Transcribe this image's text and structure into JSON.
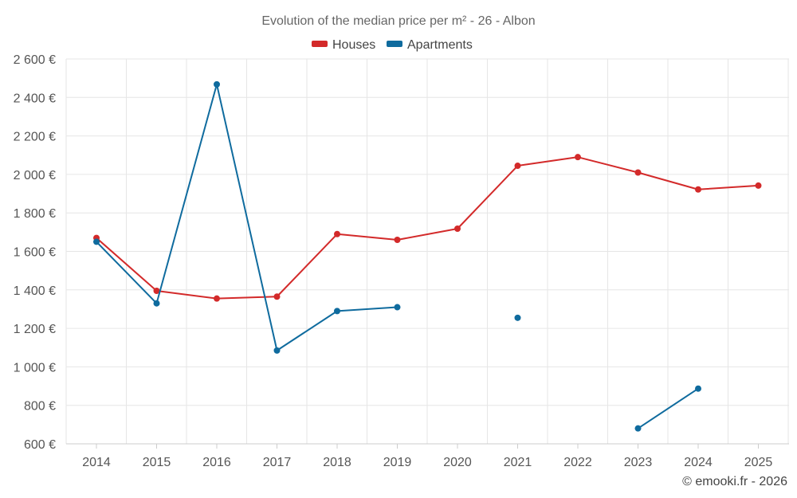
{
  "chart_data": {
    "type": "line",
    "title": "Evolution of the median price per m² - 26 - Albon",
    "categories": [
      "2014",
      "2015",
      "2016",
      "2017",
      "2018",
      "2019",
      "2020",
      "2021",
      "2022",
      "2023",
      "2024",
      "2025"
    ],
    "series": [
      {
        "name": "Houses",
        "color": "#d32a2a",
        "values": [
          1670,
          1395,
          1355,
          1365,
          1690,
          1660,
          1718,
          2045,
          2090,
          2010,
          1922,
          1942
        ]
      },
      {
        "name": "Apartments",
        "color": "#0f6b9e",
        "values": [
          1650,
          1330,
          2468,
          1085,
          1290,
          1310,
          null,
          1255,
          null,
          680,
          887,
          null
        ]
      }
    ],
    "y_ticks": [
      "600 €",
      "800 €",
      "1 000 €",
      "1 200 €",
      "1 400 €",
      "1 600 €",
      "1 800 €",
      "2 000 €",
      "2 200 €",
      "2 400 €",
      "2 600 €"
    ],
    "ylim": [
      600,
      2600
    ],
    "xlabel": "",
    "ylabel": "",
    "grid": true,
    "legend_position": "top-center"
  },
  "credit": "© emooki.fr - 2026"
}
